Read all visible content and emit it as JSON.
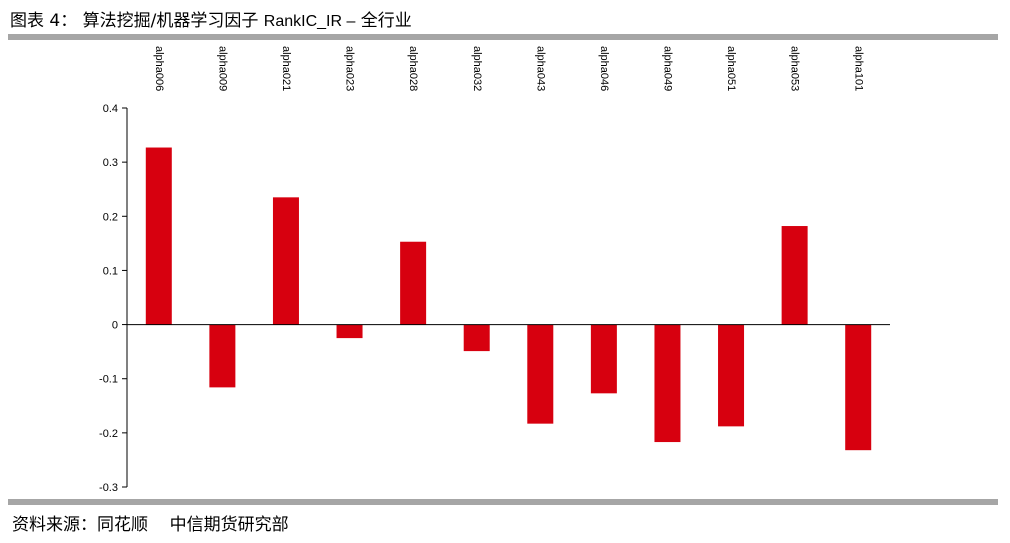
{
  "header": {
    "figure_label": "图表 4：",
    "title_cn": "算法挖掘/机器学习因子",
    "title_en": "RankIC_IR –",
    "title_suffix": "全行业"
  },
  "footer": {
    "source_label": "资料来源：同花顺",
    "source_org": "中信期货研究部"
  },
  "colors": {
    "bar": "#d7000f",
    "rule": "#a6a6a6",
    "axis": "#000000"
  },
  "chart_data": {
    "type": "bar",
    "title": "算法挖掘/机器学习因子 RankIC_IR – 全行业",
    "xlabel": "",
    "ylabel": "",
    "categories": [
      "alpha006",
      "alpha009",
      "alpha021",
      "alpha023",
      "alpha028",
      "alpha032",
      "alpha043",
      "alpha046",
      "alpha049",
      "alpha051",
      "alpha053",
      "alpha101"
    ],
    "values": [
      0.327,
      -0.116,
      0.235,
      -0.025,
      0.153,
      -0.049,
      -0.183,
      -0.127,
      -0.217,
      -0.188,
      0.182,
      -0.232
    ],
    "ylim": [
      -0.3,
      0.4
    ],
    "yticks": [
      0.4,
      0.3,
      0.2,
      0.1,
      0,
      -0.1,
      -0.2,
      -0.3
    ],
    "ytick_labels": [
      "0.4",
      "0.3",
      "0.2",
      "0.1",
      "0",
      "-0.1",
      "-0.2",
      "-0.3"
    ],
    "grid": false,
    "legend": "none",
    "category_label_position": "top, rotated vertical"
  }
}
